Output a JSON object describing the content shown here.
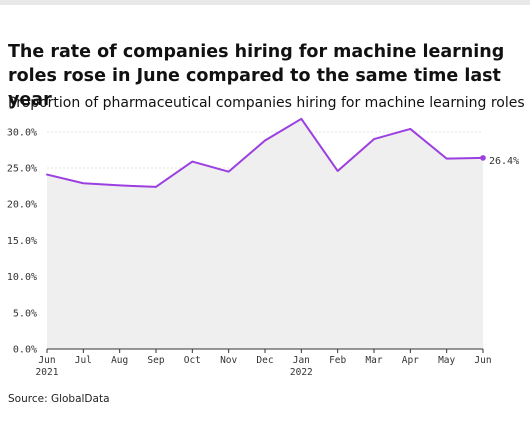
{
  "header": {
    "title": "The rate of companies hiring for machine learning roles rose in June compared to the same time last year",
    "subtitle": "Proportion of pharmaceutical companies hiring for machine learning roles"
  },
  "source": "Source: GlobalData",
  "chart_data": {
    "type": "area",
    "title": "The rate of companies hiring for machine learning roles rose in June compared to the same time last year",
    "subtitle": "Proportion of pharmaceutical companies hiring for machine learning roles",
    "xlabel": "",
    "ylabel": "",
    "categories": [
      "2021-06",
      "2021-07",
      "2021-08",
      "2021-09",
      "2021-10",
      "2021-11",
      "2021-12",
      "2022-01",
      "2022-02",
      "2022-03",
      "2022-04",
      "2022-05",
      "2022-06"
    ],
    "x_tick_labels": [
      {
        "month": "Jun",
        "year": "2021"
      },
      {
        "month": "Jul",
        "year": ""
      },
      {
        "month": "Aug",
        "year": ""
      },
      {
        "month": "Sep",
        "year": ""
      },
      {
        "month": "Oct",
        "year": ""
      },
      {
        "month": "Nov",
        "year": ""
      },
      {
        "month": "Dec",
        "year": ""
      },
      {
        "month": "Jan",
        "year": "2022"
      },
      {
        "month": "Feb",
        "year": ""
      },
      {
        "month": "Mar",
        "year": ""
      },
      {
        "month": "Apr",
        "year": ""
      },
      {
        "month": "May",
        "year": ""
      },
      {
        "month": "Jun",
        "year": ""
      }
    ],
    "series": [
      {
        "values": [
          24.1,
          22.9,
          22.6,
          22.4,
          25.9,
          24.5,
          28.8,
          31.8,
          24.6,
          29.0,
          30.4,
          26.3,
          26.4
        ]
      }
    ],
    "ylim": [
      0,
      31.5
    ],
    "y_ticks": [
      0,
      5,
      10,
      15,
      20,
      25,
      30
    ],
    "y_tick_labels": [
      "0.0%",
      "5.0%",
      "10.0%",
      "15.0%",
      "20.0%",
      "25.0%",
      "30.0%"
    ],
    "end_label": "26.4%",
    "grid": true,
    "legend": "none",
    "colors": {
      "line": "#9b3fe0",
      "area": "#efefef",
      "grid": "#e3e3e3",
      "axis": "#333333"
    }
  }
}
